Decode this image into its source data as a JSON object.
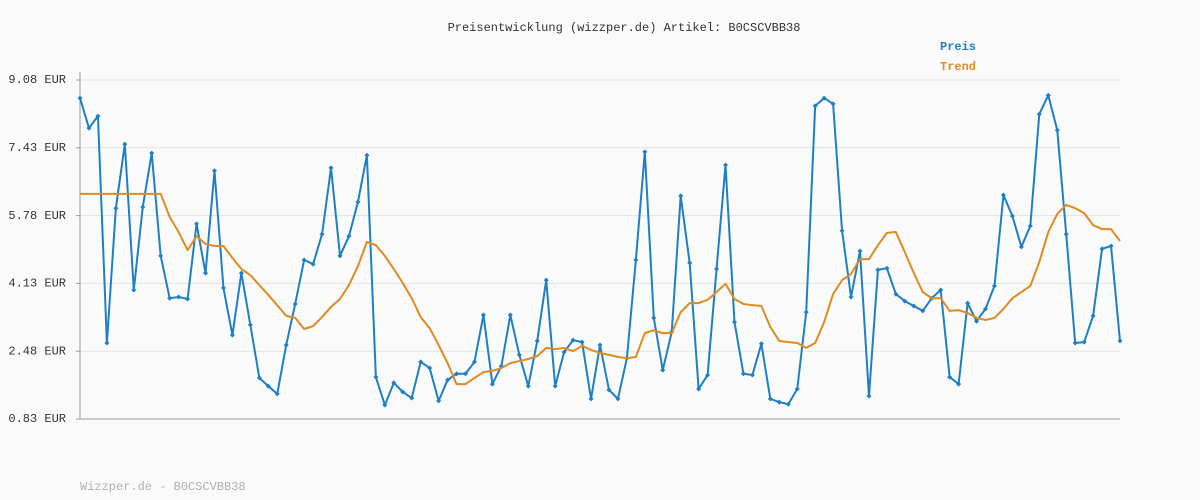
{
  "chart_data": {
    "type": "line",
    "title": "Preisentwicklung (wizzper.de) Artikel: B0CSCVBB38",
    "footer": "Wizzper.de - B0CSCVBB38",
    "categories": [
      null,
      null,
      null,
      null,
      null,
      null,
      null,
      null,
      null,
      null,
      null,
      null,
      null,
      null,
      null,
      null,
      null,
      null,
      null,
      null,
      null,
      null,
      null,
      null,
      null,
      null,
      null,
      null,
      null,
      null,
      null,
      null,
      null,
      null,
      null,
      null,
      null,
      null,
      null,
      null,
      null,
      null,
      null,
      null,
      null,
      null,
      null,
      null,
      null,
      null,
      null,
      null,
      null,
      null,
      null,
      null,
      null,
      null,
      null,
      null,
      null,
      null,
      null,
      null,
      null,
      null,
      null,
      null,
      null,
      null,
      null,
      null,
      null,
      null,
      null,
      null,
      null,
      null,
      null,
      null,
      null,
      null,
      null,
      null,
      null,
      null,
      null,
      null,
      null,
      null,
      null,
      null,
      null,
      null,
      null,
      null,
      null,
      null,
      null,
      null,
      null,
      null,
      null,
      null,
      null,
      null,
      null,
      null,
      null,
      null,
      null,
      null,
      null,
      null,
      null,
      null,
      null
    ],
    "series": [
      {
        "name": "Preis",
        "color": "#1f7fc4",
        "markers": true,
        "values": [
          8.64,
          7.91,
          8.2,
          2.68,
          5.96,
          7.52,
          3.97,
          5.99,
          7.3,
          4.8,
          3.77,
          3.8,
          3.75,
          5.58,
          4.38,
          6.87,
          4.02,
          2.87,
          4.38,
          3.12,
          1.83,
          1.63,
          1.44,
          2.63,
          3.63,
          4.7,
          4.6,
          5.33,
          6.94,
          4.8,
          5.28,
          6.11,
          7.25,
          1.85,
          1.17,
          1.71,
          1.49,
          1.34,
          2.22,
          2.07,
          1.27,
          1.78,
          1.93,
          1.93,
          2.22,
          3.36,
          1.68,
          2.12,
          3.36,
          2.39,
          1.63,
          2.73,
          4.21,
          1.63,
          2.46,
          2.75,
          2.7,
          1.32,
          2.63,
          1.54,
          1.32,
          2.31,
          4.7,
          7.33,
          3.29,
          2.02,
          2.95,
          6.26,
          4.63,
          1.56,
          1.9,
          4.48,
          7.01,
          3.19,
          1.93,
          1.9,
          2.66,
          1.32,
          1.24,
          1.19,
          1.56,
          3.43,
          8.45,
          8.64,
          8.5,
          5.41,
          3.8,
          4.92,
          1.39,
          4.46,
          4.5,
          3.87,
          3.7,
          3.58,
          3.46,
          3.77,
          3.97,
          1.85,
          1.68,
          3.65,
          3.21,
          3.51,
          4.07,
          6.28,
          5.77,
          5.02,
          5.53,
          8.25,
          8.71,
          7.86,
          5.33,
          2.68,
          2.7,
          3.34,
          4.97,
          5.04,
          2.73
        ]
      },
      {
        "name": "Trend",
        "color": "#dd8b22",
        "markers": false,
        "values": [
          6.31,
          6.31,
          6.31,
          6.31,
          6.31,
          6.31,
          6.31,
          6.31,
          6.31,
          6.31,
          5.75,
          5.38,
          4.94,
          5.28,
          5.09,
          5.04,
          5.04,
          4.75,
          4.48,
          4.33,
          4.09,
          3.85,
          3.6,
          3.34,
          3.29,
          3.02,
          3.09,
          3.31,
          3.56,
          3.75,
          4.09,
          4.55,
          5.14,
          5.06,
          4.8,
          4.48,
          4.14,
          3.77,
          3.31,
          3.04,
          2.63,
          2.19,
          1.68,
          1.68,
          1.83,
          1.97,
          2.0,
          2.07,
          2.19,
          2.24,
          2.29,
          2.36,
          2.56,
          2.53,
          2.56,
          2.48,
          2.61,
          2.51,
          2.44,
          2.39,
          2.34,
          2.31,
          2.34,
          2.92,
          2.99,
          2.92,
          2.92,
          3.43,
          3.65,
          3.65,
          3.73,
          3.92,
          4.12,
          3.75,
          3.63,
          3.6,
          3.58,
          3.07,
          2.73,
          2.7,
          2.68,
          2.56,
          2.68,
          3.19,
          3.87,
          4.21,
          4.36,
          4.72,
          4.72,
          5.06,
          5.36,
          5.38,
          4.89,
          4.38,
          3.92,
          3.77,
          3.77,
          3.46,
          3.48,
          3.41,
          3.29,
          3.24,
          3.29,
          3.51,
          3.77,
          3.92,
          4.07,
          4.65,
          5.38,
          5.82,
          6.04,
          5.96,
          5.84,
          5.55,
          5.45,
          5.45,
          5.16
        ]
      }
    ],
    "ylim": [
      0.83,
      9.08
    ],
    "yticks": [
      {
        "value": 0.83,
        "label": "0.83 EUR"
      },
      {
        "value": 2.48,
        "label": "2.48 EUR"
      },
      {
        "value": 4.13,
        "label": "4.13 EUR"
      },
      {
        "value": 5.78,
        "label": "5.78 EUR"
      },
      {
        "value": 7.43,
        "label": "7.43 EUR"
      },
      {
        "value": 9.08,
        "label": "9.08 EUR"
      }
    ],
    "grid": true,
    "legend": "top-right"
  }
}
